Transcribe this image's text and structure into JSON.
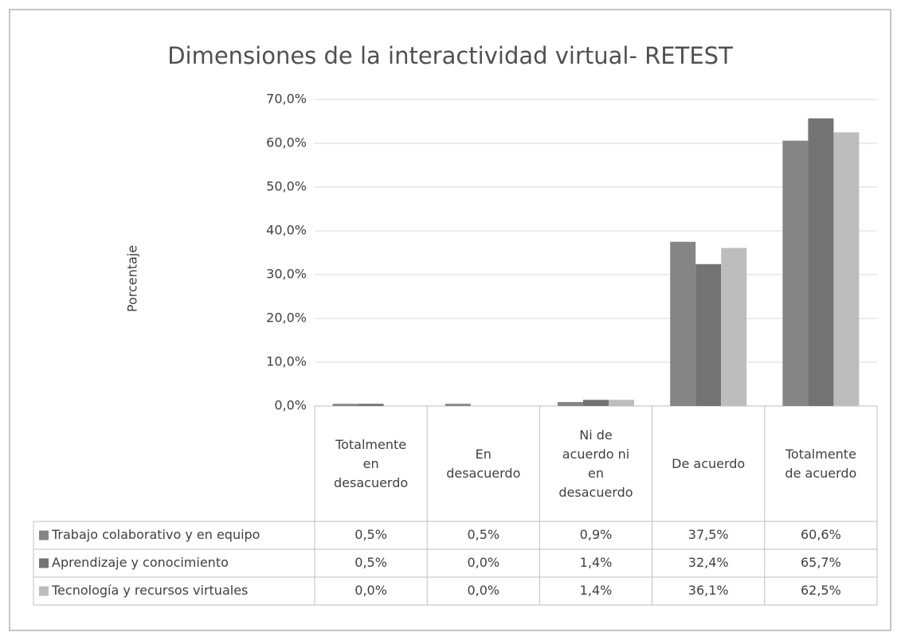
{
  "chart_data": {
    "type": "bar",
    "title": "Dimensiones de la interactividad virtual- RETEST",
    "y_label": "Porcentaje",
    "categories": [
      "Totalmente en desacuerdo",
      "En desacuerdo",
      "Ni de acuerdo ni en desacuerdo",
      "De acuerdo",
      "Totalmente de acuerdo"
    ],
    "series": [
      {
        "name": "Trabajo colaborativo y en equipo",
        "color": "#858585",
        "values": [
          0.5,
          0.5,
          0.9,
          37.5,
          60.6
        ],
        "value_labels": [
          "0,5%",
          "0,5%",
          "0,9%",
          "37,5%",
          "60,6%"
        ]
      },
      {
        "name": "Aprendizaje y conocimiento",
        "color": "#737373",
        "values": [
          0.5,
          0.0,
          1.4,
          32.4,
          65.7
        ],
        "value_labels": [
          "0,5%",
          "0,0%",
          "1,4%",
          "32,4%",
          "65,7%"
        ]
      },
      {
        "name": "Tecnología y recursos virtuales",
        "color": "#bdbdbd",
        "values": [
          0.0,
          0.0,
          1.4,
          36.1,
          62.5
        ],
        "value_labels": [
          "0,0%",
          "0,0%",
          "1,4%",
          "36,1%",
          "62,5%"
        ]
      }
    ],
    "ylim": [
      0,
      70
    ],
    "yticks": [
      {
        "value": 0,
        "label": "0,0%"
      },
      {
        "value": 10,
        "label": "10,0%"
      },
      {
        "value": 20,
        "label": "20,0%"
      },
      {
        "value": 30,
        "label": "30,0%"
      },
      {
        "value": 40,
        "label": "40,0%"
      },
      {
        "value": 50,
        "label": "50,0%"
      },
      {
        "value": 60,
        "label": "60,0%"
      },
      {
        "value": 70,
        "label": "70,0%"
      }
    ],
    "grid": true
  }
}
